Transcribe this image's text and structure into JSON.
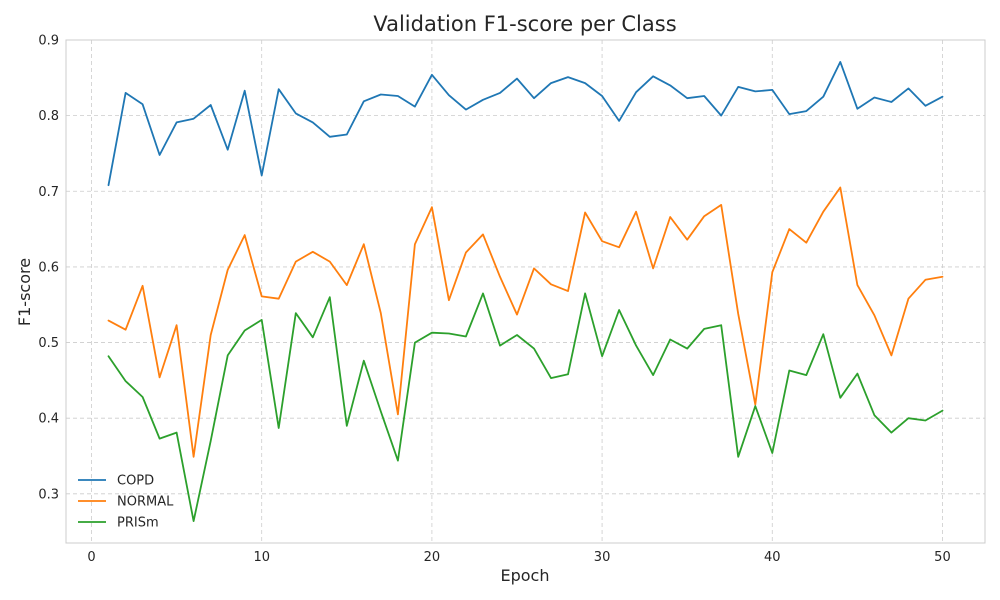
{
  "chart_data": {
    "type": "line",
    "title": "Validation F1-score per Class",
    "xlabel": "Epoch",
    "ylabel": "F1-score",
    "xlim": [
      -1.5,
      52.5
    ],
    "ylim": [
      0.235,
      0.9
    ],
    "xticks": [
      0,
      10,
      20,
      30,
      40,
      50
    ],
    "yticks": [
      0.3,
      0.4,
      0.5,
      0.6,
      0.7,
      0.8,
      0.9
    ],
    "grid": true,
    "legend_position": "lower-left",
    "x": [
      1,
      2,
      3,
      4,
      5,
      6,
      7,
      8,
      9,
      10,
      11,
      12,
      13,
      14,
      15,
      16,
      17,
      18,
      19,
      20,
      21,
      22,
      23,
      24,
      25,
      26,
      27,
      28,
      29,
      30,
      31,
      32,
      33,
      34,
      35,
      36,
      37,
      38,
      39,
      40,
      41,
      42,
      43,
      44,
      45,
      46,
      47,
      48,
      49,
      50
    ],
    "series": [
      {
        "name": "COPD",
        "color": "#1f77b4",
        "values": [
          0.708,
          0.83,
          0.815,
          0.748,
          0.791,
          0.796,
          0.814,
          0.755,
          0.833,
          0.721,
          0.835,
          0.803,
          0.791,
          0.772,
          0.775,
          0.819,
          0.828,
          0.826,
          0.812,
          0.854,
          0.827,
          0.808,
          0.821,
          0.83,
          0.849,
          0.823,
          0.843,
          0.851,
          0.843,
          0.826,
          0.793,
          0.831,
          0.852,
          0.84,
          0.823,
          0.826,
          0.8,
          0.838,
          0.832,
          0.834,
          0.802,
          0.806,
          0.825,
          0.871,
          0.809,
          0.824,
          0.818,
          0.836,
          0.813,
          0.825
        ]
      },
      {
        "name": "NORMAL",
        "color": "#ff7f0e",
        "values": [
          0.529,
          0.517,
          0.575,
          0.454,
          0.523,
          0.349,
          0.51,
          0.596,
          0.642,
          0.561,
          0.558,
          0.607,
          0.62,
          0.607,
          0.576,
          0.63,
          0.539,
          0.405,
          0.63,
          0.679,
          0.556,
          0.619,
          0.643,
          0.587,
          0.537,
          0.598,
          0.577,
          0.568,
          0.672,
          0.634,
          0.626,
          0.673,
          0.598,
          0.666,
          0.636,
          0.667,
          0.682,
          0.538,
          0.418,
          0.593,
          0.65,
          0.632,
          0.673,
          0.705,
          0.576,
          0.536,
          0.483,
          0.558,
          0.583,
          0.587
        ]
      },
      {
        "name": "PRISm",
        "color": "#2ca02c",
        "values": [
          0.482,
          0.449,
          0.428,
          0.373,
          0.381,
          0.264,
          0.37,
          0.483,
          0.516,
          0.53,
          0.387,
          0.539,
          0.507,
          0.56,
          0.39,
          0.476,
          0.409,
          0.344,
          0.5,
          0.513,
          0.512,
          0.508,
          0.565,
          0.496,
          0.51,
          0.492,
          0.453,
          0.458,
          0.565,
          0.482,
          0.543,
          0.496,
          0.457,
          0.504,
          0.492,
          0.518,
          0.523,
          0.349,
          0.416,
          0.354,
          0.463,
          0.457,
          0.511,
          0.427,
          0.459,
          0.404,
          0.381,
          0.4,
          0.397,
          0.41
        ]
      }
    ]
  }
}
